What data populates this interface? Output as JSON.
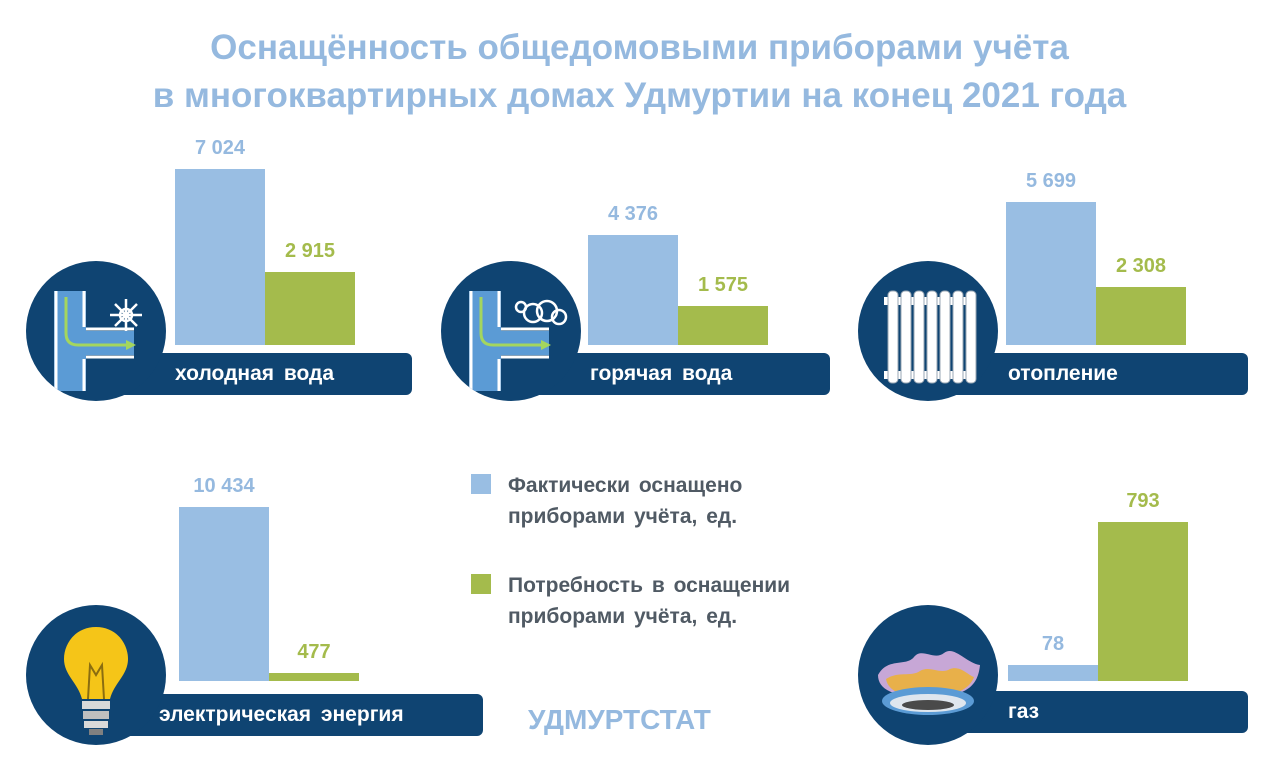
{
  "title_line1": "Оснащённость общедомовыми приборами учёта",
  "title_line2": "в многоквартирных домах Удмуртии на конец 2021 года",
  "footer": "УДМУРТСТАТ",
  "colors": {
    "actual": "#99bee3",
    "need": "#a4bb4c",
    "banner": "#0f4472"
  },
  "legend": {
    "actual": {
      "line1": "Фактически оснащено",
      "line2": "приборами учёта, ед."
    },
    "need": {
      "line1": "Потребность в оснащении",
      "line2": "приборами учёта, ед."
    }
  },
  "chart_data": {
    "type": "bar",
    "categories": [
      "холодная вода",
      "горячая вода",
      "отопление",
      "электрическая энергия",
      "газ"
    ],
    "icons": [
      "cold-water-pipe-icon",
      "hot-water-pipe-icon",
      "radiator-icon",
      "light-bulb-icon",
      "gas-burner-icon"
    ],
    "series": [
      {
        "name": "Фактически оснащено приборами учёта, ед.",
        "values": [
          7024,
          4376,
          5699,
          10434,
          78
        ],
        "labels": [
          "7 024",
          "4 376",
          "5 699",
          "10 434",
          "78"
        ]
      },
      {
        "name": "Потребность в оснащении приборами учёта, ед.",
        "values": [
          2915,
          1575,
          2308,
          477,
          793
        ],
        "labels": [
          "2 915",
          "1 575",
          "2 308",
          "477",
          "793"
        ]
      }
    ]
  }
}
